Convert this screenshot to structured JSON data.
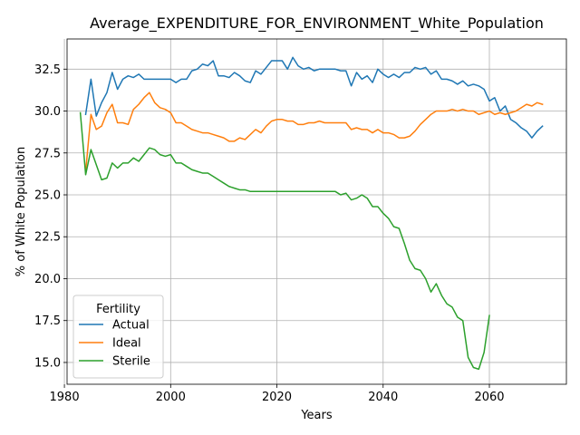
{
  "chart_data": {
    "type": "line",
    "title": "Average_EXPENDITURE_FOR_ENVIRONMENT_White_Population",
    "xlabel": "Years",
    "ylabel": "% of White Population",
    "xlim": [
      1980.5,
      2074.5
    ],
    "ylim": [
      13.7,
      34.3
    ],
    "xticks": [
      1980,
      2000,
      2020,
      2040,
      2060
    ],
    "yticks": [
      15.0,
      17.5,
      20.0,
      22.5,
      25.0,
      27.5,
      30.0,
      32.5
    ],
    "xtick_labels": [
      "1980",
      "2000",
      "2020",
      "2040",
      "2060"
    ],
    "ytick_labels": [
      "15.0",
      "17.5",
      "20.0",
      "22.5",
      "25.0",
      "27.5",
      "30.0",
      "32.5"
    ],
    "grid": true,
    "legend": {
      "title": "Fertility",
      "placement": "lower-left"
    },
    "series": [
      {
        "name": "Actual",
        "color": "#1f77b4",
        "x": [
          1984,
          1985,
          1986,
          1987,
          1988,
          1989,
          1990,
          1991,
          1992,
          1993,
          1994,
          1995,
          1996,
          1997,
          1998,
          1999,
          2000,
          2001,
          2002,
          2003,
          2004,
          2005,
          2006,
          2007,
          2008,
          2009,
          2010,
          2011,
          2012,
          2013,
          2014,
          2015,
          2016,
          2017,
          2018,
          2019,
          2020,
          2021,
          2022,
          2023,
          2024,
          2025,
          2026,
          2027,
          2028,
          2029,
          2030,
          2031,
          2032,
          2033,
          2034,
          2035,
          2036,
          2037,
          2038,
          2039,
          2040,
          2041,
          2042,
          2043,
          2044,
          2045,
          2046,
          2047,
          2048,
          2049,
          2050,
          2051,
          2052,
          2053,
          2054,
          2055,
          2056,
          2057,
          2058,
          2059,
          2060,
          2061,
          2062,
          2063,
          2064,
          2065,
          2066,
          2067,
          2068,
          2069,
          2070
        ],
        "values": [
          29.8,
          31.9,
          29.7,
          30.5,
          31.1,
          32.3,
          31.3,
          31.9,
          32.1,
          32.0,
          32.2,
          31.9,
          31.9,
          31.9,
          31.9,
          31.9,
          31.9,
          31.7,
          31.9,
          31.9,
          32.4,
          32.5,
          32.8,
          32.7,
          33.0,
          32.1,
          32.1,
          32.0,
          32.3,
          32.1,
          31.8,
          31.7,
          32.4,
          32.2,
          32.6,
          33.0,
          33.0,
          33.0,
          32.5,
          33.2,
          32.7,
          32.5,
          32.6,
          32.4,
          32.5,
          32.5,
          32.5,
          32.5,
          32.4,
          32.4,
          31.5,
          32.3,
          31.9,
          32.1,
          31.7,
          32.5,
          32.2,
          32.0,
          32.2,
          32.0,
          32.3,
          32.3,
          32.6,
          32.5,
          32.6,
          32.2,
          32.4,
          31.9,
          31.9,
          31.8,
          31.6,
          31.8,
          31.5,
          31.6,
          31.5,
          31.3,
          30.6,
          30.8,
          30.0,
          30.3,
          29.5,
          29.3,
          29.0,
          28.8,
          28.4,
          28.8,
          29.1
        ]
      },
      {
        "name": "Ideal",
        "color": "#ff7f0e",
        "x": [
          1984,
          1985,
          1986,
          1987,
          1988,
          1989,
          1990,
          1991,
          1992,
          1993,
          1994,
          1995,
          1996,
          1997,
          1998,
          1999,
          2000,
          2001,
          2002,
          2003,
          2004,
          2005,
          2006,
          2007,
          2008,
          2009,
          2010,
          2011,
          2012,
          2013,
          2014,
          2015,
          2016,
          2017,
          2018,
          2019,
          2020,
          2021,
          2022,
          2023,
          2024,
          2025,
          2026,
          2027,
          2028,
          2029,
          2030,
          2031,
          2032,
          2033,
          2034,
          2035,
          2036,
          2037,
          2038,
          2039,
          2040,
          2041,
          2042,
          2043,
          2044,
          2045,
          2046,
          2047,
          2048,
          2049,
          2050,
          2051,
          2052,
          2053,
          2054,
          2055,
          2056,
          2057,
          2058,
          2059,
          2060,
          2061,
          2062,
          2063,
          2064,
          2065,
          2066,
          2067,
          2068,
          2069,
          2070
        ],
        "values": [
          26.4,
          29.8,
          28.9,
          29.1,
          29.9,
          30.4,
          29.3,
          29.3,
          29.2,
          30.1,
          30.4,
          30.8,
          31.1,
          30.5,
          30.2,
          30.1,
          29.9,
          29.3,
          29.3,
          29.1,
          28.9,
          28.8,
          28.7,
          28.7,
          28.6,
          28.5,
          28.4,
          28.2,
          28.2,
          28.4,
          28.3,
          28.6,
          28.9,
          28.7,
          29.1,
          29.4,
          29.5,
          29.5,
          29.4,
          29.4,
          29.2,
          29.2,
          29.3,
          29.3,
          29.4,
          29.3,
          29.3,
          29.3,
          29.3,
          29.3,
          28.9,
          29.0,
          28.9,
          28.9,
          28.7,
          28.9,
          28.7,
          28.7,
          28.6,
          28.4,
          28.4,
          28.5,
          28.8,
          29.2,
          29.5,
          29.8,
          30.0,
          30.0,
          30.0,
          30.1,
          30.0,
          30.1,
          30.0,
          30.0,
          29.8,
          29.9,
          30.0,
          29.8,
          29.9,
          29.8,
          29.9,
          30.0,
          30.2,
          30.4,
          30.3,
          30.5,
          30.4
        ]
      },
      {
        "name": "Sterile",
        "color": "#2ca02c",
        "x": [
          1983,
          1984,
          1985,
          1986,
          1987,
          1988,
          1989,
          1990,
          1991,
          1992,
          1993,
          1994,
          1995,
          1996,
          1997,
          1998,
          1999,
          2000,
          2001,
          2002,
          2003,
          2004,
          2005,
          2006,
          2007,
          2008,
          2009,
          2010,
          2011,
          2012,
          2013,
          2014,
          2015,
          2016,
          2017,
          2018,
          2019,
          2020,
          2021,
          2022,
          2023,
          2024,
          2025,
          2026,
          2027,
          2028,
          2029,
          2030,
          2031,
          2032,
          2033,
          2034,
          2035,
          2036,
          2037,
          2038,
          2039,
          2040,
          2041,
          2042,
          2043,
          2044,
          2045,
          2046,
          2047,
          2048,
          2049,
          2050,
          2051,
          2052,
          2053,
          2054,
          2055,
          2056,
          2057,
          2058,
          2059,
          2060
        ],
        "values": [
          29.9,
          26.2,
          27.7,
          26.8,
          25.9,
          26.0,
          26.9,
          26.6,
          26.9,
          26.9,
          27.2,
          27.0,
          27.4,
          27.8,
          27.7,
          27.4,
          27.3,
          27.4,
          26.9,
          26.9,
          26.7,
          26.5,
          26.4,
          26.3,
          26.3,
          26.1,
          25.9,
          25.7,
          25.5,
          25.4,
          25.3,
          25.3,
          25.2,
          25.2,
          25.2,
          25.2,
          25.2,
          25.2,
          25.2,
          25.2,
          25.2,
          25.2,
          25.2,
          25.2,
          25.2,
          25.2,
          25.2,
          25.2,
          25.2,
          25.0,
          25.1,
          24.7,
          24.8,
          25.0,
          24.8,
          24.3,
          24.3,
          23.9,
          23.6,
          23.1,
          23.0,
          22.1,
          21.1,
          20.6,
          20.5,
          20.0,
          19.2,
          19.7,
          19.0,
          18.5,
          18.3,
          17.7,
          17.5,
          15.3,
          14.7,
          14.6,
          15.6,
          17.8
        ]
      }
    ]
  }
}
